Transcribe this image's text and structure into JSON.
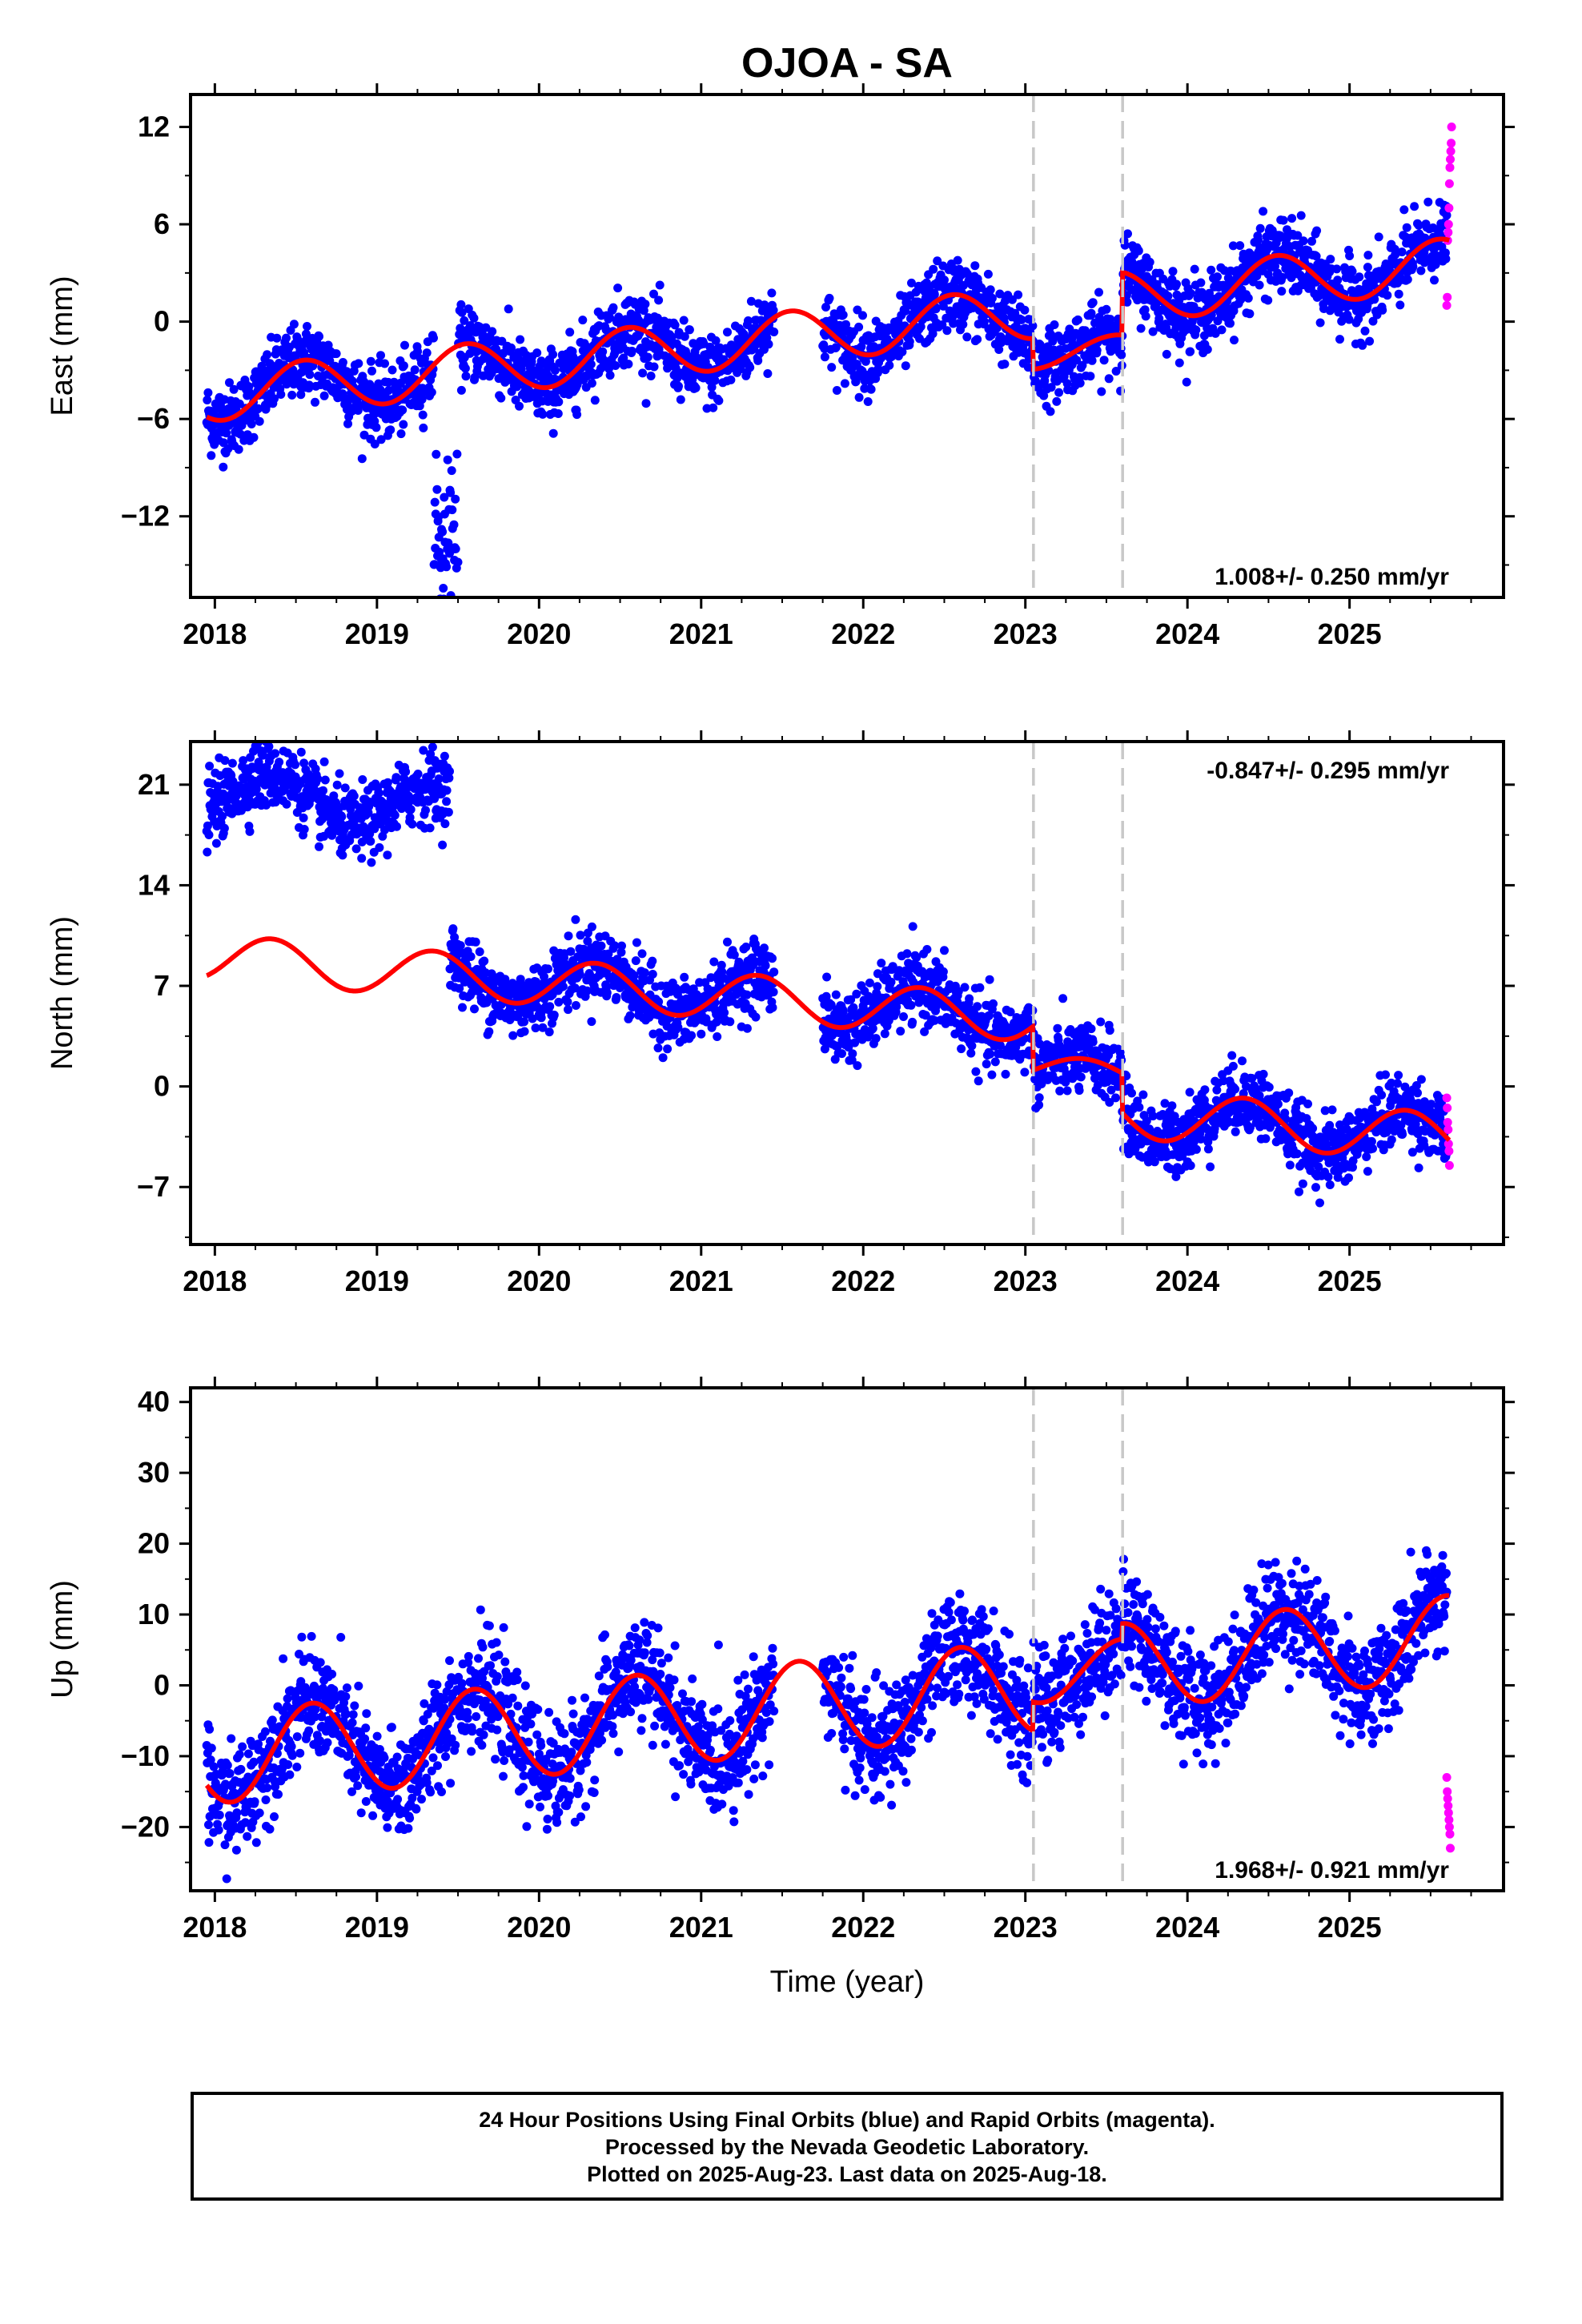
{
  "title": "OJOA - SA",
  "colors": {
    "final": "#0000ff",
    "rapid": "#ff00ff",
    "model": "#ff0000",
    "step": "#c8c8c8"
  },
  "chart_data": [
    {
      "type": "scatter",
      "ylabel": "East (mm)",
      "xlabel": "",
      "xlim": [
        2017.85,
        2025.95
      ],
      "ylim": [
        -17,
        14
      ],
      "xticks": [
        2018,
        2019,
        2020,
        2021,
        2022,
        2023,
        2024,
        2025
      ],
      "yticks": [
        12,
        6,
        0,
        -6,
        -12
      ],
      "ytick_labels": [
        "12",
        "6",
        "0",
        "−6",
        "−12"
      ],
      "vlines": [
        2023.05,
        2023.6
      ],
      "annotation": "1.008+/- 0.250 mm/yr",
      "annotation_pos": "bottom-right",
      "model": {
        "t0": 2021.5,
        "rate": 1.008,
        "segments": [
          {
            "x_end": 2023.05,
            "offset": -1.0,
            "amp": 1.6,
            "phase": 0.3
          },
          {
            "x_end": 2023.6,
            "offset": -3.7,
            "amp": 0.8,
            "phase": 0.3
          },
          {
            "x_end": 2025.65,
            "offset": -0.6,
            "amp": 1.6,
            "phase": 0.3
          }
        ]
      },
      "rapid": [
        1.0,
        1.5,
        5.0,
        5.5,
        6.0,
        7.0,
        8.5,
        9.5,
        10.0,
        10.5,
        11.0,
        12.0
      ],
      "noise": 1.1
    },
    {
      "type": "scatter",
      "ylabel": "North (mm)",
      "xlabel": "",
      "xlim": [
        2017.85,
        2025.95
      ],
      "ylim": [
        -11,
        24
      ],
      "xticks": [
        2018,
        2019,
        2020,
        2021,
        2022,
        2023,
        2024,
        2025
      ],
      "yticks": [
        21,
        14,
        7,
        0,
        -7
      ],
      "ytick_labels": [
        "21",
        "14",
        "7",
        "0",
        "−7"
      ],
      "vlines": [
        2023.05,
        2023.6
      ],
      "annotation": "-0.847+/- 0.295 mm/yr",
      "annotation_pos": "top-right",
      "model": {
        "t0": 2021.5,
        "rate": -0.847,
        "segments": [
          {
            "x_end": 2023.05,
            "offset": 6.0,
            "amp": 1.6,
            "phase": 0.1
          },
          {
            "x_end": 2023.6,
            "offset": 2.7,
            "amp": 0.8,
            "phase": 0.1
          },
          {
            "x_end": 2025.65,
            "offset": -0.1,
            "amp": 1.7,
            "phase": 0.1
          }
        ]
      },
      "rapid": [
        -0.8,
        -1.5,
        -2.5,
        -3.0,
        -4.0,
        -4.5,
        -5.5
      ],
      "noise": 1.2
    },
    {
      "type": "scatter",
      "ylabel": "Up (mm)",
      "xlabel": "Time (year)",
      "xlim": [
        2017.85,
        2025.95
      ],
      "ylim": [
        -29,
        42
      ],
      "xticks": [
        2018,
        2019,
        2020,
        2021,
        2022,
        2023,
        2024,
        2025
      ],
      "yticks": [
        40,
        30,
        20,
        10,
        0,
        -10,
        -20
      ],
      "ytick_labels": [
        "40",
        "30",
        "20",
        "10",
        "0",
        "−10",
        "−20"
      ],
      "vlines": [
        2023.05,
        2023.6
      ],
      "annotation": "1.968+/- 0.921 mm/yr",
      "annotation_pos": "bottom-right",
      "model": {
        "t0": 2021.5,
        "rate": 1.968,
        "segments": [
          {
            "x_end": 2023.05,
            "offset": -3.3,
            "amp": 6.5,
            "phase": 0.35
          },
          {
            "x_end": 2023.6,
            "offset": -1.6,
            "amp": 4.0,
            "phase": 0.35
          },
          {
            "x_end": 2025.65,
            "offset": -1.4,
            "amp": 6.0,
            "phase": 0.35
          }
        ]
      },
      "rapid": [
        -13,
        -15,
        -16,
        -17,
        -18,
        -19,
        -20,
        -21,
        -23
      ],
      "noise": 3.8
    }
  ],
  "x_tick_labels": [
    "2018",
    "2019",
    "2020",
    "2021",
    "2022",
    "2023",
    "2024",
    "2025"
  ],
  "footer": {
    "line1": "24 Hour Positions Using Final Orbits (blue) and Rapid Orbits (magenta).",
    "line2": "Processed by the Nevada Geodetic Laboratory.",
    "line3": "Plotted on 2025-Aug-23. Last data on 2025-Aug-18."
  }
}
